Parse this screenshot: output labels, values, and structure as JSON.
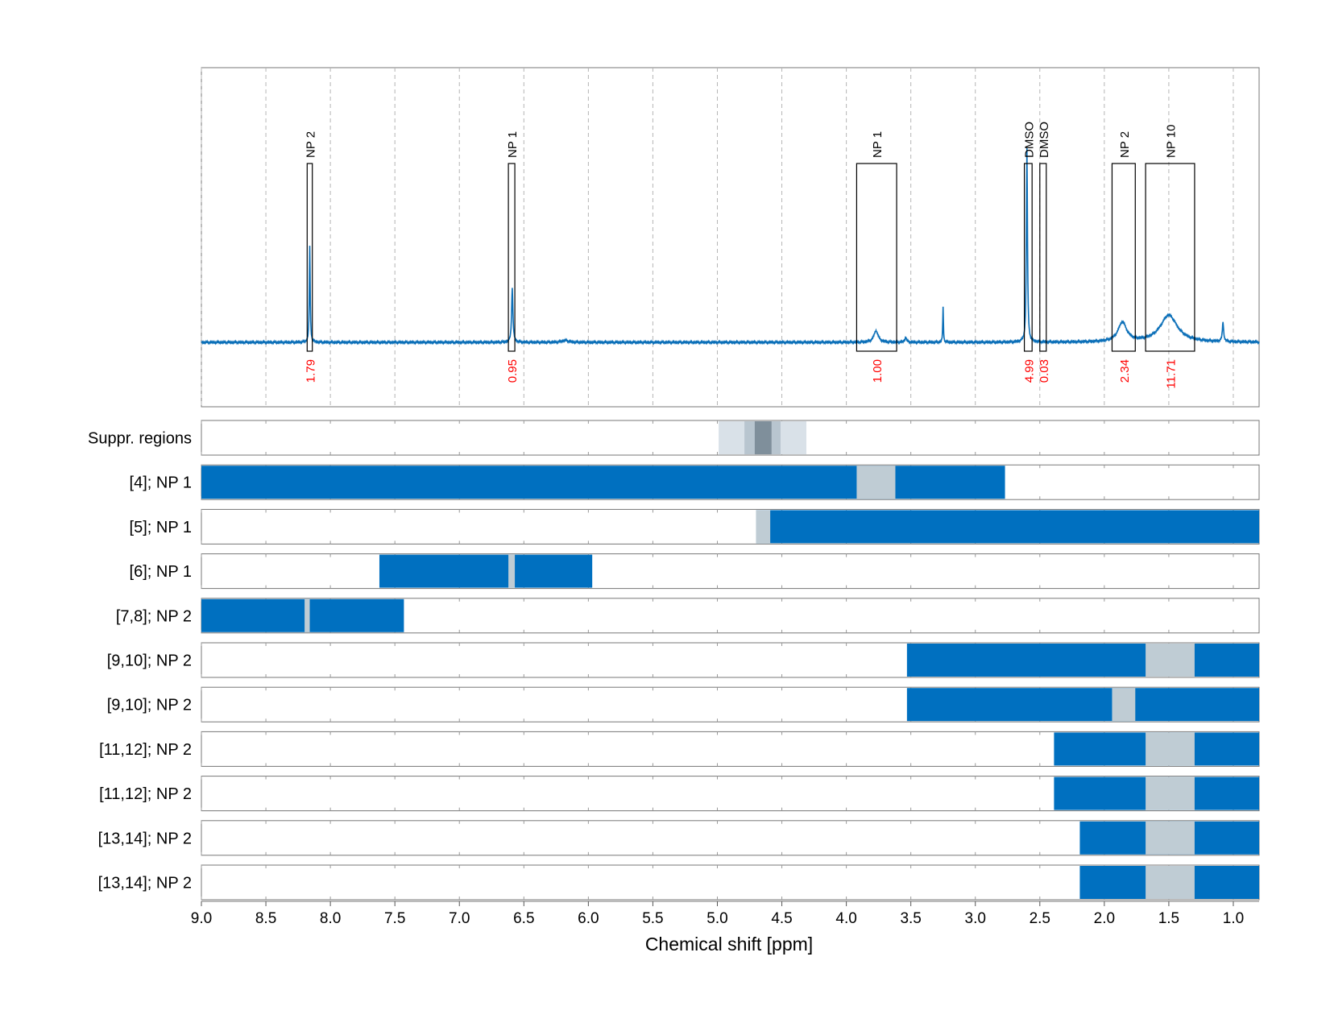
{
  "chart_data": {
    "type": "line",
    "xlabel": "Chemical shift [ppm]",
    "xlim": [
      9.0,
      0.8
    ],
    "x_reversed": true,
    "x_ticks": [
      "9.0",
      "8.5",
      "8.0",
      "7.5",
      "7.0",
      "6.5",
      "6.0",
      "5.5",
      "5.0",
      "4.5",
      "4.0",
      "3.5",
      "3.0",
      "2.5",
      "2.0",
      "1.5",
      "1.0"
    ],
    "grid": "vertical dashed",
    "colors": {
      "spectrum": "#0b6fb8",
      "region_fill": "#0070c0",
      "gap_fill": "#bfccd4",
      "integral_text": "#ff0000",
      "suppr_light": "#d9e1e8",
      "suppr_mid": "#b8c5cf",
      "suppr_dark": "#7f8f9b"
    },
    "spectrum": {
      "baseline": 0,
      "peaks": [
        {
          "x": 8.16,
          "height": 1.0,
          "width": 0.004
        },
        {
          "x": 6.59,
          "height": 0.56,
          "width": 0.006
        },
        {
          "x": 6.18,
          "height": 0.02,
          "width": 0.03
        },
        {
          "x": 3.77,
          "height": 0.12,
          "width": 0.02
        },
        {
          "x": 3.54,
          "height": 0.05,
          "width": 0.008
        },
        {
          "x": 3.25,
          "height": 0.37,
          "width": 0.003
        },
        {
          "x": 2.6,
          "height": 2.0,
          "width": 0.005
        },
        {
          "x": 1.86,
          "height": 0.2,
          "width": 0.04
        },
        {
          "x": 1.5,
          "height": 0.28,
          "width": 0.08
        },
        {
          "x": 1.08,
          "height": 0.2,
          "width": 0.006
        }
      ]
    },
    "integration_regions": [
      {
        "label": "NP 2",
        "x_from": 8.18,
        "x_to": 8.14,
        "integral": "1.79"
      },
      {
        "label": "NP 1",
        "x_from": 6.62,
        "x_to": 6.57,
        "integral": "0.95"
      },
      {
        "label": "NP 1",
        "x_from": 3.92,
        "x_to": 3.61,
        "integral": "1.00"
      },
      {
        "label": "DMSO",
        "x_from": 2.62,
        "x_to": 2.56,
        "integral": "4.99"
      },
      {
        "label": "DMSO",
        "x_from": 2.5,
        "x_to": 2.45,
        "integral": "0.03"
      },
      {
        "label": "NP 2",
        "x_from": 1.94,
        "x_to": 1.76,
        "integral": "2.34"
      },
      {
        "label": "NP 10",
        "x_from": 1.68,
        "x_to": 1.3,
        "integral": "11.71"
      }
    ],
    "suppression_track": {
      "label": "Suppr. regions",
      "bands": [
        {
          "x_from": 4.99,
          "x_to": 4.31,
          "shade": "light"
        },
        {
          "x_from": 4.79,
          "x_to": 4.51,
          "shade": "mid"
        },
        {
          "x_from": 4.71,
          "x_to": 4.58,
          "shade": "dark"
        }
      ]
    },
    "tracks": [
      {
        "label": "[4]; NP 1",
        "x_from": 9.0,
        "x_to": 2.77,
        "gap": [
          3.92,
          3.62
        ]
      },
      {
        "label": "[5]; NP 1",
        "x_from": 4.7,
        "x_to": 0.8,
        "gap": [
          4.7,
          4.59
        ]
      },
      {
        "label": "[6]; NP 1",
        "x_from": 7.62,
        "x_to": 5.97,
        "gap": [
          6.62,
          6.57
        ]
      },
      {
        "label": "[7,8]; NP 2",
        "x_from": 9.0,
        "x_to": 7.43,
        "gap": [
          8.2,
          8.16
        ]
      },
      {
        "label": "[9,10]; NP 2",
        "x_from": 3.53,
        "x_to": 0.8,
        "gap": [
          1.68,
          1.3
        ]
      },
      {
        "label": "[9,10]; NP 2",
        "x_from": 3.53,
        "x_to": 0.8,
        "gap": [
          1.94,
          1.76
        ]
      },
      {
        "label": "[11,12]; NP 2",
        "x_from": 2.39,
        "x_to": 0.8,
        "gap": [
          1.68,
          1.3
        ]
      },
      {
        "label": "[11,12]; NP 2",
        "x_from": 2.39,
        "x_to": 0.8,
        "gap": [
          1.68,
          1.3
        ]
      },
      {
        "label": "[13,14]; NP 2",
        "x_from": 2.19,
        "x_to": 0.8,
        "gap": [
          1.68,
          1.3
        ]
      },
      {
        "label": "[13,14]; NP 2",
        "x_from": 2.19,
        "x_to": 0.8,
        "gap": [
          1.68,
          1.3
        ]
      }
    ]
  }
}
